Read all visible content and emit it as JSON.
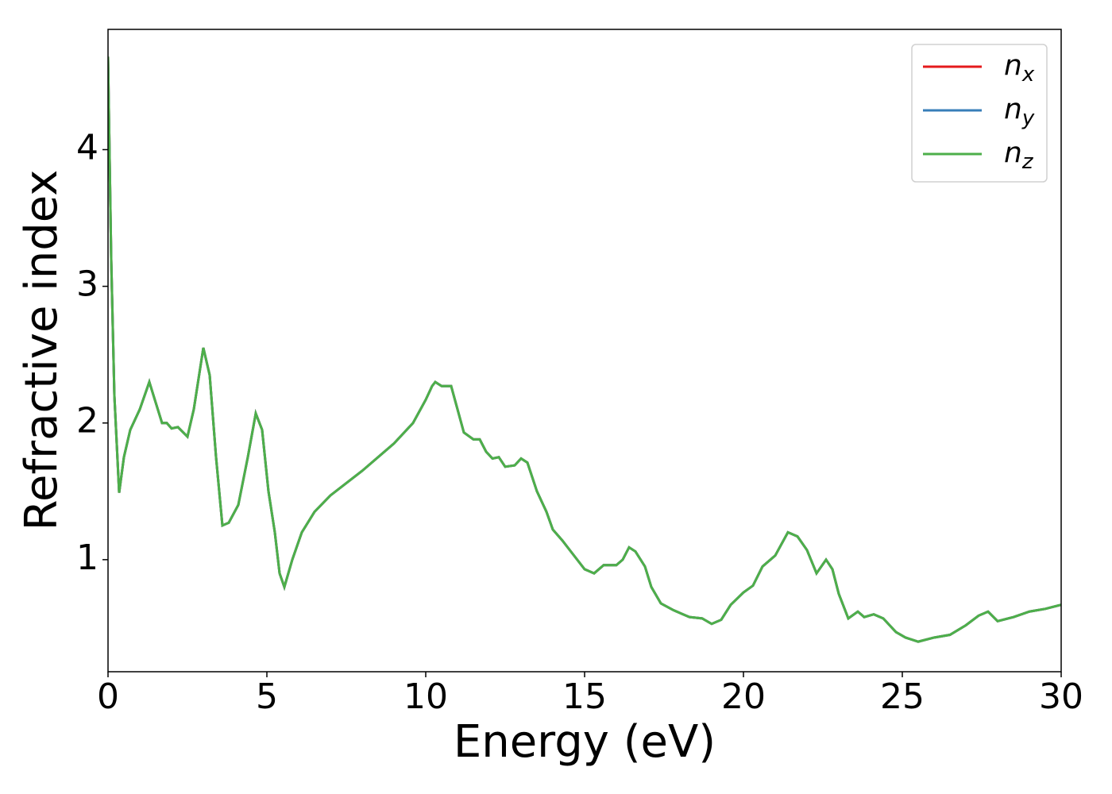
{
  "chart_data": {
    "type": "line",
    "xlabel": "Energy (eV)",
    "ylabel": "Refractive index",
    "x": [
      0.0,
      0.1,
      0.2,
      0.35,
      0.5,
      0.7,
      1.0,
      1.3,
      1.5,
      1.7,
      1.85,
      2.0,
      2.2,
      2.5,
      2.7,
      3.0,
      3.2,
      3.4,
      3.6,
      3.8,
      4.1,
      4.4,
      4.65,
      4.85,
      5.05,
      5.25,
      5.4,
      5.55,
      5.8,
      6.1,
      6.5,
      7.0,
      8.0,
      9.0,
      9.6,
      10.0,
      10.2,
      10.3,
      10.5,
      10.8,
      11.0,
      11.2,
      11.5,
      11.7,
      11.9,
      12.1,
      12.3,
      12.5,
      12.8,
      13.0,
      13.2,
      13.5,
      13.8,
      14.0,
      14.3,
      14.6,
      15.0,
      15.3,
      15.6,
      16.0,
      16.2,
      16.4,
      16.6,
      16.9,
      17.1,
      17.4,
      17.8,
      18.1,
      18.3,
      18.7,
      19.0,
      19.3,
      19.6,
      20.0,
      20.3,
      20.6,
      21.0,
      21.4,
      21.7,
      22.0,
      22.3,
      22.6,
      22.8,
      23.0,
      23.3,
      23.6,
      23.8,
      24.1,
      24.4,
      24.8,
      25.1,
      25.5,
      26.0,
      26.5,
      27.0,
      27.4,
      27.7,
      28.0,
      28.5,
      29.0,
      29.5,
      30.0
    ],
    "series": [
      {
        "name": "nx",
        "color": "#e41a1c",
        "values": [
          4.68,
          3.2,
          2.2,
          1.49,
          1.75,
          1.95,
          2.1,
          2.3,
          2.15,
          2.0,
          2.0,
          1.96,
          1.97,
          1.9,
          2.1,
          2.55,
          2.35,
          1.75,
          1.25,
          1.27,
          1.4,
          1.75,
          2.07,
          1.95,
          1.5,
          1.2,
          0.9,
          0.8,
          1.0,
          1.2,
          1.35,
          1.47,
          1.65,
          1.85,
          2.0,
          2.17,
          2.27,
          2.3,
          2.27,
          2.27,
          2.1,
          1.93,
          1.88,
          1.88,
          1.79,
          1.74,
          1.75,
          1.68,
          1.69,
          1.74,
          1.71,
          1.5,
          1.35,
          1.22,
          1.14,
          1.05,
          0.93,
          0.9,
          0.96,
          0.96,
          1.0,
          1.09,
          1.06,
          0.95,
          0.8,
          0.68,
          0.63,
          0.6,
          0.58,
          0.57,
          0.53,
          0.56,
          0.67,
          0.76,
          0.81,
          0.95,
          1.03,
          1.2,
          1.17,
          1.07,
          0.9,
          1.0,
          0.93,
          0.75,
          0.57,
          0.62,
          0.58,
          0.6,
          0.57,
          0.47,
          0.43,
          0.4,
          0.43,
          0.45,
          0.52,
          0.59,
          0.62,
          0.55,
          0.58,
          0.62,
          0.64,
          0.67
        ]
      },
      {
        "name": "ny",
        "color": "#377eb8",
        "values": [
          4.68,
          3.2,
          2.2,
          1.49,
          1.75,
          1.95,
          2.1,
          2.3,
          2.15,
          2.0,
          2.0,
          1.96,
          1.97,
          1.9,
          2.1,
          2.55,
          2.35,
          1.75,
          1.25,
          1.27,
          1.4,
          1.75,
          2.07,
          1.95,
          1.5,
          1.2,
          0.9,
          0.8,
          1.0,
          1.2,
          1.35,
          1.47,
          1.65,
          1.85,
          2.0,
          2.17,
          2.27,
          2.3,
          2.27,
          2.27,
          2.1,
          1.93,
          1.88,
          1.88,
          1.79,
          1.74,
          1.75,
          1.68,
          1.69,
          1.74,
          1.71,
          1.5,
          1.35,
          1.22,
          1.14,
          1.05,
          0.93,
          0.9,
          0.96,
          0.96,
          1.0,
          1.09,
          1.06,
          0.95,
          0.8,
          0.68,
          0.63,
          0.6,
          0.58,
          0.57,
          0.53,
          0.56,
          0.67,
          0.76,
          0.81,
          0.95,
          1.03,
          1.2,
          1.17,
          1.07,
          0.9,
          1.0,
          0.93,
          0.75,
          0.57,
          0.62,
          0.58,
          0.6,
          0.57,
          0.47,
          0.43,
          0.4,
          0.43,
          0.45,
          0.52,
          0.59,
          0.62,
          0.55,
          0.58,
          0.62,
          0.64,
          0.67
        ]
      },
      {
        "name": "nz",
        "color": "#4daf4a",
        "values": [
          4.68,
          3.2,
          2.2,
          1.49,
          1.75,
          1.95,
          2.1,
          2.3,
          2.15,
          2.0,
          2.0,
          1.96,
          1.97,
          1.9,
          2.1,
          2.55,
          2.35,
          1.75,
          1.25,
          1.27,
          1.4,
          1.75,
          2.07,
          1.95,
          1.5,
          1.2,
          0.9,
          0.8,
          1.0,
          1.2,
          1.35,
          1.47,
          1.65,
          1.85,
          2.0,
          2.17,
          2.27,
          2.3,
          2.27,
          2.27,
          2.1,
          1.93,
          1.88,
          1.88,
          1.79,
          1.74,
          1.75,
          1.68,
          1.69,
          1.74,
          1.71,
          1.5,
          1.35,
          1.22,
          1.14,
          1.05,
          0.93,
          0.9,
          0.96,
          0.96,
          1.0,
          1.09,
          1.06,
          0.95,
          0.8,
          0.68,
          0.63,
          0.6,
          0.58,
          0.57,
          0.53,
          0.56,
          0.67,
          0.76,
          0.81,
          0.95,
          1.03,
          1.2,
          1.17,
          1.07,
          0.9,
          1.0,
          0.93,
          0.75,
          0.57,
          0.62,
          0.58,
          0.6,
          0.57,
          0.47,
          0.43,
          0.4,
          0.43,
          0.45,
          0.52,
          0.59,
          0.62,
          0.55,
          0.58,
          0.62,
          0.64,
          0.67
        ]
      }
    ],
    "xlim": [
      0,
      30
    ],
    "xticks": [
      0,
      5,
      10,
      15,
      20,
      25,
      30
    ],
    "ylim": [
      0.18,
      4.88
    ],
    "yticks": [
      1,
      2,
      3,
      4
    ],
    "grid": false,
    "legend": "upper right"
  }
}
